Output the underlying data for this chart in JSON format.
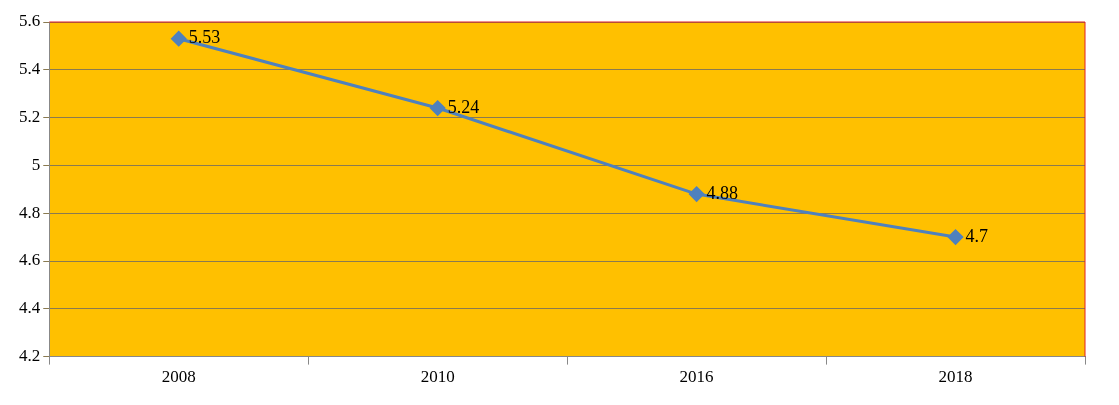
{
  "chart_data": {
    "type": "line",
    "categories": [
      "2008",
      "2010",
      "2016",
      "2018"
    ],
    "series": [
      {
        "color": "#4f81bd",
        "values": [
          5.53,
          5.24,
          4.88,
          4.7
        ]
      }
    ],
    "ylim": [
      4.2,
      5.6
    ],
    "yticks": [
      4.2,
      4.4,
      4.6,
      4.8,
      5,
      5.2,
      5.4,
      5.6
    ],
    "grid": "y",
    "legend": false,
    "marker": "diamond",
    "line_style": "solid",
    "data_labels": true
  }
}
